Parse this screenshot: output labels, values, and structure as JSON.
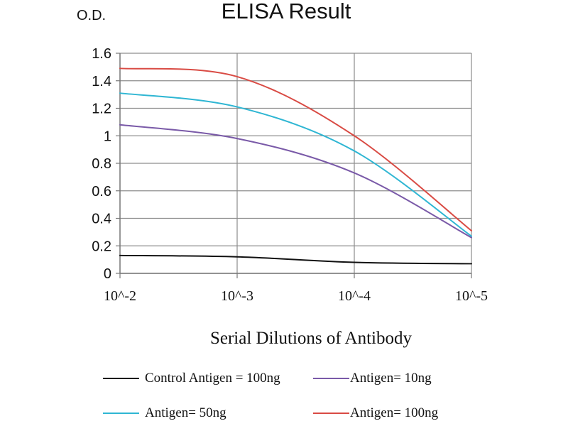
{
  "chart_data": {
    "type": "line",
    "title": "ELISA Result",
    "ylabel": "O.D.",
    "xlabel": "Serial Dilutions of Antibody",
    "categories": [
      "10^-2",
      "10^-3",
      "10^-4",
      "10^-5"
    ],
    "x": [
      -2,
      -3,
      -4,
      -5
    ],
    "ylim": [
      0,
      1.6
    ],
    "yticks": [
      "0",
      "0.2",
      "0.4",
      "0.6",
      "0.8",
      "1",
      "1.2",
      "1.4",
      "1.6"
    ],
    "ytick_values": [
      0,
      0.2,
      0.4,
      0.6,
      0.8,
      1.0,
      1.2,
      1.4,
      1.6
    ],
    "grid": true,
    "legend_position": "bottom",
    "series": [
      {
        "name": "Control Antigen = 100ng",
        "color": "#111111",
        "values": [
          0.13,
          0.12,
          0.08,
          0.07
        ]
      },
      {
        "name": "Antigen= 10ng",
        "color": "#7a5aa8",
        "values": [
          1.08,
          0.98,
          0.73,
          0.26
        ]
      },
      {
        "name": "Antigen= 50ng",
        "color": "#2fb6d3",
        "values": [
          1.31,
          1.21,
          0.89,
          0.27
        ]
      },
      {
        "name": "Antigen= 100ng",
        "color": "#d94b44",
        "values": [
          1.49,
          1.43,
          1.0,
          0.31
        ]
      }
    ]
  }
}
